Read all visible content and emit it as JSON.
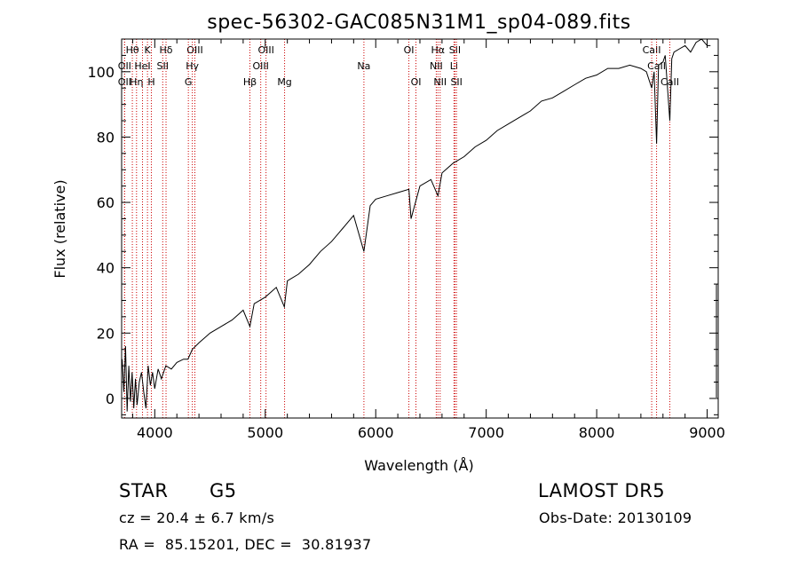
{
  "chart_data": {
    "type": "line",
    "title": "spec-56302-GAC085N31M1_sp04-089.fits",
    "xlabel": "Wavelength (Å)",
    "ylabel": "Flux (relative)",
    "xlim": [
      3700,
      9100
    ],
    "ylim": [
      -6,
      110
    ],
    "x_ticks": [
      4000,
      5000,
      6000,
      7000,
      8000,
      9000
    ],
    "y_ticks": [
      0,
      20,
      40,
      60,
      80,
      100
    ],
    "grid": false,
    "line_color": "#000000",
    "marker_color": "#cc0000",
    "series": [
      {
        "x": [
          3705,
          3720,
          3735,
          3750,
          3765,
          3780,
          3795,
          3810,
          3825,
          3840,
          3860,
          3880,
          3900,
          3920,
          3940,
          3960,
          3980,
          4000,
          4030,
          4060,
          4100,
          4150,
          4200,
          4260,
          4300,
          4340,
          4400,
          4500,
          4600,
          4700,
          4800,
          4861,
          4900,
          5000,
          5100,
          5173,
          5200,
          5300,
          5400,
          5500,
          5600,
          5700,
          5800,
          5893,
          5950,
          6000,
          6100,
          6200,
          6300,
          6320,
          6400,
          6500,
          6563,
          6600,
          6700,
          6800,
          6900,
          7000,
          7100,
          7200,
          7300,
          7400,
          7500,
          7600,
          7700,
          7800,
          7900,
          8000,
          8100,
          8200,
          8300,
          8400,
          8450,
          8498,
          8520,
          8542,
          8560,
          8600,
          8620,
          8662,
          8680,
          8700,
          8750,
          8800,
          8850,
          8900,
          8950,
          9000,
          9030
        ],
        "y": [
          12,
          2,
          16,
          -4,
          10,
          -1,
          8,
          -3,
          6,
          -2,
          5,
          8,
          2,
          -3,
          10,
          4,
          8,
          3,
          9,
          6,
          10,
          9,
          11,
          12,
          12,
          15,
          17,
          20,
          22,
          24,
          27,
          22,
          29,
          31,
          34,
          28,
          36,
          38,
          41,
          45,
          48,
          52,
          56,
          45,
          59,
          61,
          62,
          63,
          64,
          55,
          65,
          67,
          62,
          69,
          72,
          74,
          77,
          79,
          82,
          84,
          86,
          88,
          91,
          92,
          94,
          96,
          98,
          99,
          101,
          101,
          102,
          101,
          100,
          95,
          100,
          78,
          102,
          103,
          105,
          85,
          104,
          106,
          107,
          108,
          106,
          109,
          110,
          108,
          108
        ]
      }
    ],
    "line_markers": [
      {
        "label": "Hθ",
        "x": 3797,
        "row": 0
      },
      {
        "label": "OII",
        "x": 3727,
        "row": 1
      },
      {
        "label": "OII",
        "x": 3727,
        "row": 2
      },
      {
        "label": "Hη",
        "x": 3835,
        "row": 2
      },
      {
        "label": "K",
        "x": 3934,
        "row": 0
      },
      {
        "label": "HeI",
        "x": 3889,
        "row": 1
      },
      {
        "label": "H",
        "x": 3969,
        "row": 2
      },
      {
        "label": "Hδ",
        "x": 4102,
        "row": 0
      },
      {
        "label": "SII",
        "x": 4072,
        "row": 1
      },
      {
        "label": "OIII",
        "x": 4363,
        "row": 0
      },
      {
        "label": "Hγ",
        "x": 4340,
        "row": 1
      },
      {
        "label": "G",
        "x": 4304,
        "row": 2
      },
      {
        "label": "Hβ",
        "x": 4861,
        "row": 2
      },
      {
        "label": "OIII",
        "x": 5007,
        "row": 0
      },
      {
        "label": "OIII",
        "x": 4959,
        "row": 1
      },
      {
        "label": "Mg",
        "x": 5175,
        "row": 2
      },
      {
        "label": "Na",
        "x": 5893,
        "row": 1
      },
      {
        "label": "OI",
        "x": 6300,
        "row": 0
      },
      {
        "label": "OI",
        "x": 6364,
        "row": 2
      },
      {
        "label": "Hα",
        "x": 6563,
        "row": 0
      },
      {
        "label": "SII",
        "x": 6717,
        "row": 0
      },
      {
        "label": "NII",
        "x": 6548,
        "row": 1
      },
      {
        "label": "Li",
        "x": 6708,
        "row": 1
      },
      {
        "label": "NII",
        "x": 6583,
        "row": 2
      },
      {
        "label": "SII",
        "x": 6731,
        "row": 2
      },
      {
        "label": "CaII",
        "x": 8498,
        "row": 0
      },
      {
        "label": "CaII",
        "x": 8542,
        "row": 1
      },
      {
        "label": "CaII",
        "x": 8662,
        "row": 2
      }
    ]
  },
  "info": {
    "class_label": "STAR",
    "subclass": "G5",
    "survey": "LAMOST DR5",
    "redshift": "cz = 20.4 ± 6.7 km/s",
    "obs_date": "Obs-Date: 20130109",
    "coords": "RA =  85.15201, DEC =  30.81937"
  }
}
